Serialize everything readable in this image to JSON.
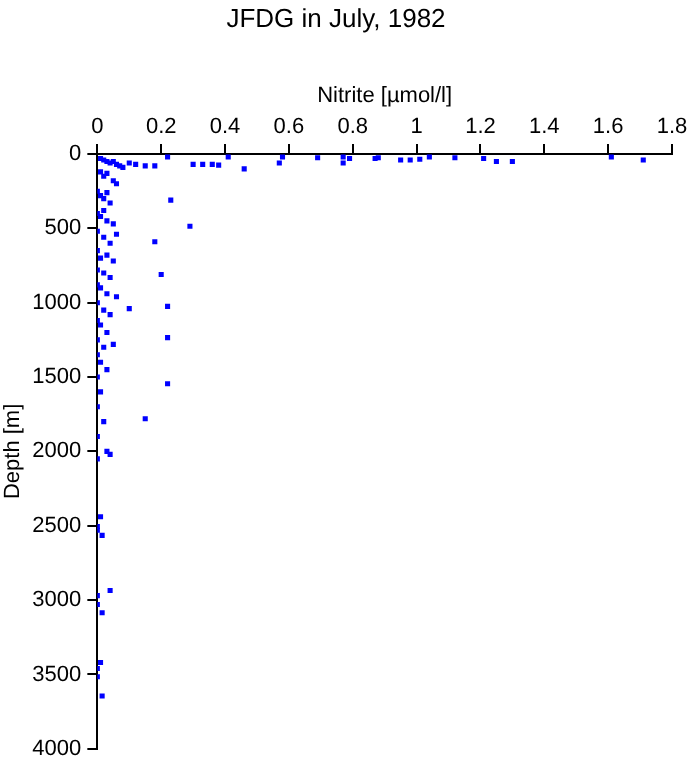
{
  "chart_data": {
    "type": "scatter",
    "title": "JFDG in July, 1982",
    "xlabel": "Nitrite [µmol/l]",
    "ylabel": "Depth [m]",
    "xlim": [
      0,
      1.8
    ],
    "xticks": [
      0,
      0.2,
      0.4,
      0.6,
      0.8,
      1,
      1.2,
      1.4,
      1.6,
      1.8
    ],
    "ylim": [
      4000,
      0
    ],
    "yticks": [
      0,
      500,
      1000,
      1500,
      2000,
      2500,
      3000,
      3500,
      4000
    ],
    "grid": false,
    "marker": "square",
    "legend": false,
    "series": [
      {
        "color": "#0000ff",
        "x": [
          0.22,
          0.41,
          0.58,
          0.69,
          0.77,
          0.79,
          0.88,
          0.98,
          1.01,
          1.04,
          1.12,
          1.21,
          1.25,
          1.3,
          1.61,
          1.71,
          0.1,
          0.12,
          0.15,
          0.18,
          0.3,
          0.33,
          0.36,
          0.38,
          0.46,
          0.57,
          0.77,
          0.87,
          0.95,
          0.23,
          0.29,
          0.18,
          0.2,
          0.1,
          0.22,
          0.22,
          0.22,
          0.15,
          0.04,
          0.01,
          0.02,
          0.03,
          0.04,
          0.05,
          0.06,
          0.07,
          0.08,
          0.01,
          0.02,
          0.03,
          0.05,
          0.06,
          0.0,
          0.01,
          0.02,
          0.03,
          0.04,
          0.0,
          0.01,
          0.02,
          0.03,
          0.05,
          0.0,
          0.02,
          0.04,
          0.06,
          0.0,
          0.01,
          0.03,
          0.05,
          0.0,
          0.02,
          0.04,
          0.0,
          0.01,
          0.03,
          0.06,
          0.0,
          0.02,
          0.04,
          0.0,
          0.01,
          0.03,
          0.0,
          0.02,
          0.05,
          0.0,
          0.01,
          0.03,
          0.0,
          0.01,
          0.0,
          0.02,
          0.0,
          0.03,
          0.0,
          0.01,
          0.0,
          0.0,
          0.015,
          0.04,
          0.0,
          0.0,
          0.015,
          0.01,
          0.0,
          0.0,
          0.015
        ],
        "values": [
          20,
          20,
          20,
          25,
          20,
          30,
          25,
          40,
          35,
          20,
          25,
          30,
          50,
          50,
          20,
          40,
          60,
          70,
          80,
          80,
          70,
          70,
          70,
          75,
          100,
          60,
          60,
          30,
          40,
          310,
          486,
          590,
          810,
          1040,
          1025,
          1235,
          1545,
          1780,
          2020,
          30,
          40,
          50,
          60,
          50,
          70,
          80,
          90,
          120,
          150,
          130,
          180,
          200,
          250,
          280,
          300,
          260,
          330,
          400,
          420,
          380,
          450,
          470,
          520,
          560,
          600,
          540,
          650,
          700,
          680,
          720,
          780,
          800,
          830,
          880,
          900,
          940,
          960,
          1000,
          1050,
          1080,
          1120,
          1150,
          1200,
          1250,
          1300,
          1280,
          1350,
          1400,
          1450,
          1500,
          1600,
          1700,
          1800,
          1900,
          2000,
          2050,
          2440,
          2505,
          2530,
          2565,
          2935,
          2970,
          3030,
          3085,
          3420,
          3460,
          3515,
          3645
        ]
      }
    ]
  }
}
